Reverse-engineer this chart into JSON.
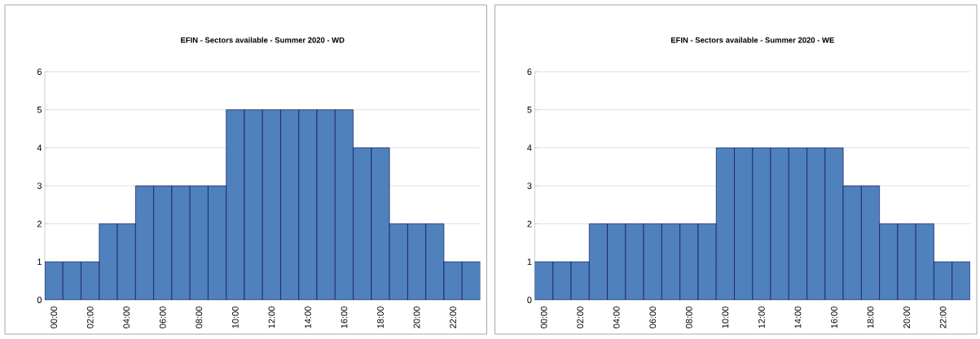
{
  "chart_data": [
    {
      "type": "bar",
      "title": "EFIN - Sectors available - Summer 2020 - WD",
      "categories": [
        "00:00",
        null,
        "02:00",
        null,
        "04:00",
        null,
        "06:00",
        null,
        "08:00",
        null,
        "10:00",
        null,
        "12:00",
        null,
        "14:00",
        null,
        "16:00",
        null,
        "18:00",
        null,
        "20:00",
        null,
        "22:00",
        null
      ],
      "values": [
        1,
        1,
        1,
        2,
        2,
        3,
        3,
        3,
        3,
        3,
        5,
        5,
        5,
        5,
        5,
        5,
        5,
        4,
        4,
        2,
        2,
        2,
        1,
        1
      ],
      "color": "#4f81bd",
      "ylim": [
        0,
        6
      ],
      "yticks": [
        0,
        1,
        2,
        3,
        4,
        5,
        6
      ],
      "grid": "y"
    },
    {
      "type": "bar",
      "title": "EFIN - Sectors available - Summer 2020 - WE",
      "categories": [
        "00:00",
        null,
        "02:00",
        null,
        "04:00",
        null,
        "06:00",
        null,
        "08:00",
        null,
        "10:00",
        null,
        "12:00",
        null,
        "14:00",
        null,
        "16:00",
        null,
        "18:00",
        null,
        "20:00",
        null,
        "22:00",
        null
      ],
      "values": [
        1,
        1,
        1,
        2,
        2,
        2,
        2,
        2,
        2,
        2,
        4,
        4,
        4,
        4,
        4,
        4,
        4,
        3,
        3,
        2,
        2,
        2,
        1,
        1
      ],
      "color": "#4f81bd",
      "ylim": [
        0,
        6
      ],
      "yticks": [
        0,
        1,
        2,
        3,
        4,
        5,
        6
      ],
      "grid": "y"
    }
  ]
}
